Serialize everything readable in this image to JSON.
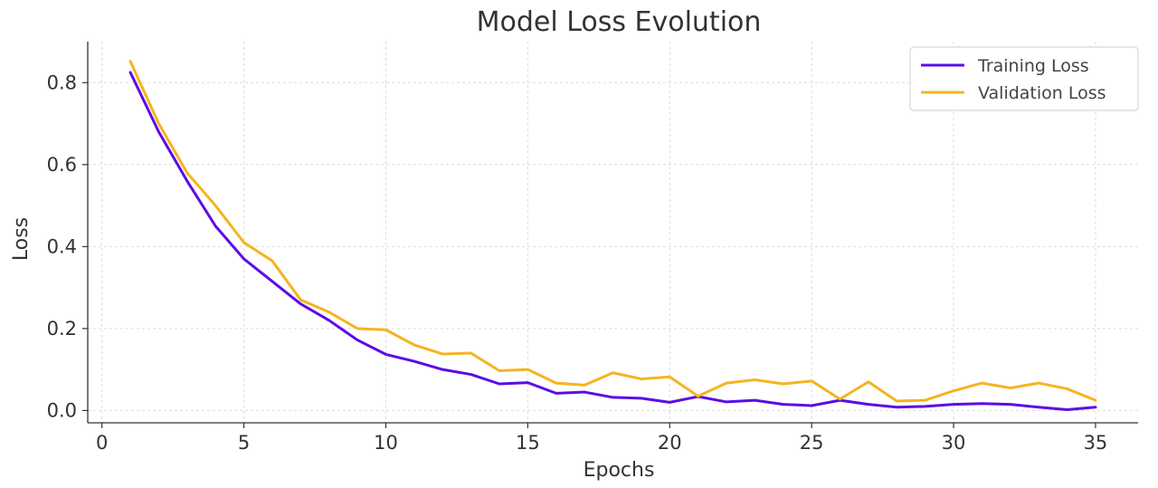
{
  "chart_data": {
    "type": "line",
    "title": "Model Loss Evolution",
    "xlabel": "Epochs",
    "ylabel": "Loss",
    "xlim": [
      -0.5,
      36.5
    ],
    "ylim": [
      -0.03,
      0.9
    ],
    "xticks": [
      0,
      5,
      10,
      15,
      20,
      25,
      30,
      35
    ],
    "yticks": [
      0.0,
      0.2,
      0.4,
      0.6,
      0.8
    ],
    "grid": true,
    "legend_position": "top-right",
    "x": [
      1,
      2,
      3,
      4,
      5,
      6,
      7,
      8,
      9,
      10,
      11,
      12,
      13,
      14,
      15,
      16,
      17,
      18,
      19,
      20,
      21,
      22,
      23,
      24,
      25,
      26,
      27,
      28,
      29,
      30,
      31,
      32,
      33,
      34,
      35
    ],
    "series": [
      {
        "name": "Training Loss",
        "color": "#5b0ce6",
        "values": [
          0.825,
          0.68,
          0.56,
          0.45,
          0.37,
          0.315,
          0.26,
          0.22,
          0.172,
          0.137,
          0.12,
          0.1,
          0.088,
          0.065,
          0.068,
          0.042,
          0.045,
          0.032,
          0.03,
          0.02,
          0.034,
          0.021,
          0.025,
          0.015,
          0.012,
          0.025,
          0.015,
          0.008,
          0.01,
          0.015,
          0.017,
          0.015,
          0.008,
          0.002,
          0.008
        ]
      },
      {
        "name": "Validation Loss",
        "color": "#f5b41f",
        "values": [
          0.852,
          0.7,
          0.58,
          0.5,
          0.41,
          0.365,
          0.27,
          0.24,
          0.2,
          0.197,
          0.16,
          0.138,
          0.14,
          0.097,
          0.1,
          0.067,
          0.062,
          0.092,
          0.077,
          0.082,
          0.035,
          0.067,
          0.075,
          0.065,
          0.072,
          0.028,
          0.07,
          0.023,
          0.025,
          0.048,
          0.067,
          0.055,
          0.067,
          0.053,
          0.025
        ]
      }
    ]
  }
}
